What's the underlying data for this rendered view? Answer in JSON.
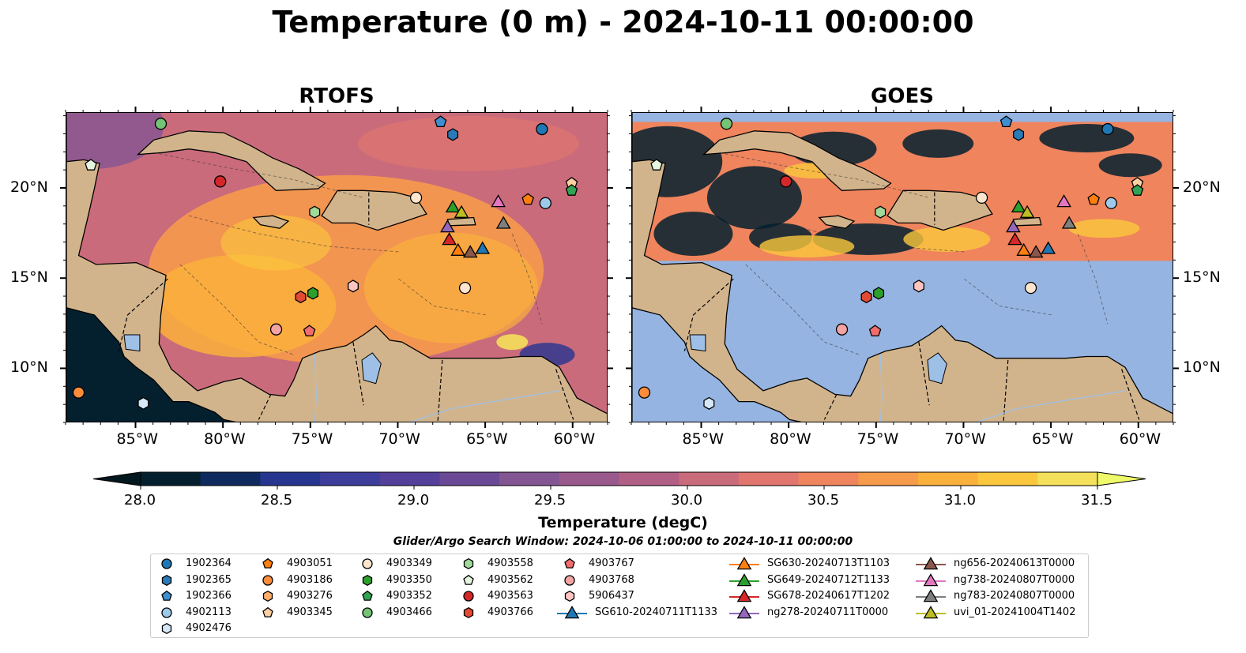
{
  "title": "Temperature (0 m) - 2024-10-11 00:00:00",
  "panels": [
    {
      "title": "RTOFS"
    },
    {
      "title": "GOES"
    }
  ],
  "lon_ticks": [
    "85°W",
    "80°W",
    "75°W",
    "70°W",
    "65°W",
    "60°W"
  ],
  "lat_ticks": [
    "20°N",
    "15°N",
    "10°N"
  ],
  "colorbar": {
    "label": "Temperature (degC)",
    "min": 28.0,
    "max": 31.5,
    "ticks": [
      "28.0",
      "28.5",
      "29.0",
      "29.5",
      "30.0",
      "30.5",
      "31.0",
      "31.5"
    ],
    "colors": [
      "#04202f",
      "#0e2a5e",
      "#263590",
      "#3d3d9c",
      "#543f9a",
      "#6b4996",
      "#835593",
      "#99598c",
      "#b15f85",
      "#ca6b7b",
      "#e1766e",
      "#ef845d",
      "#f69a4b",
      "#fbb03c",
      "#fbc83d",
      "#f4e05a"
    ],
    "under_color": "#03171f",
    "over_color": "#eefa6a"
  },
  "search_window": "Glider/Argo Search Window: 2024-10-06 01:00:00 to 2024-10-11 00:00:00",
  "land_color": "#d2b48c",
  "goes_nodata_color": "#95b4e1",
  "legend": {
    "columns": [
      [
        {
          "label": "1902364",
          "marker": "circle",
          "color": "#1f77b4"
        },
        {
          "label": "1902365",
          "marker": "hexagon",
          "color": "#2a7ab8"
        },
        {
          "label": "1902366",
          "marker": "pentagon",
          "color": "#3f8fd0"
        },
        {
          "label": "4902113",
          "marker": "circle",
          "color": "#9ecae9"
        },
        {
          "label": "4902476",
          "marker": "hexagon",
          "color": "#d6e8f7"
        }
      ],
      [
        {
          "label": "4903051",
          "marker": "pentagon",
          "color": "#ff7f0e"
        },
        {
          "label": "4903186",
          "marker": "circle",
          "color": "#fd8d3c"
        },
        {
          "label": "4903276",
          "marker": "hexagon",
          "color": "#fdae6b"
        },
        {
          "label": "4903345",
          "marker": "pentagon",
          "color": "#fdd0a2"
        }
      ],
      [
        {
          "label": "4903349",
          "marker": "circle",
          "color": "#fee6ce"
        },
        {
          "label": "4903350",
          "marker": "hexagon",
          "color": "#2ca02c"
        },
        {
          "label": "4903352",
          "marker": "pentagon",
          "color": "#31a354"
        },
        {
          "label": "4903466",
          "marker": "circle",
          "color": "#74c476"
        }
      ],
      [
        {
          "label": "4903558",
          "marker": "hexagon",
          "color": "#a1d99b"
        },
        {
          "label": "4903562",
          "marker": "pentagon",
          "color": "#e5f5e0"
        },
        {
          "label": "4903563",
          "marker": "circle",
          "color": "#d62728"
        },
        {
          "label": "4903766",
          "marker": "hexagon",
          "color": "#e34a33"
        }
      ],
      [
        {
          "label": "4903767",
          "marker": "pentagon",
          "color": "#f16d6d"
        },
        {
          "label": "4903768",
          "marker": "circle",
          "color": "#f4a3a3"
        },
        {
          "label": "5906437",
          "marker": "hexagon",
          "color": "#fcc5c0"
        },
        {
          "label": "SG610-20240711T1133",
          "marker": "triangle",
          "color": "#1f77b4",
          "line": true
        }
      ],
      [
        {
          "label": "SG630-20240713T1103",
          "marker": "triangle",
          "color": "#ff7f0e",
          "line": true
        },
        {
          "label": "SG649-20240712T1133",
          "marker": "triangle",
          "color": "#2ca02c",
          "line": true
        },
        {
          "label": "SG678-20240617T1202",
          "marker": "triangle",
          "color": "#d62728",
          "line": true
        },
        {
          "label": "ng278-20240711T0000",
          "marker": "triangle",
          "color": "#9467bd",
          "line": true
        }
      ],
      [
        {
          "label": "ng656-20240613T0000",
          "marker": "triangle",
          "color": "#8c564b",
          "line": true
        },
        {
          "label": "ng738-20240807T0000",
          "marker": "triangle",
          "color": "#e377c2",
          "line": true
        },
        {
          "label": "ng783-20240807T0000",
          "marker": "triangle",
          "color": "#7f7f7f",
          "line": true
        },
        {
          "label": "uvi_01-20241004T1402",
          "marker": "triangle",
          "color": "#bcbd22",
          "line": true
        }
      ]
    ]
  },
  "markers": [
    {
      "label": "4903466",
      "marker": "circle",
      "color": "#74c476",
      "lon": -83.6,
      "lat": 23.6
    },
    {
      "label": "1902366",
      "marker": "pentagon",
      "color": "#3f8fd0",
      "lon": -67.6,
      "lat": 23.7
    },
    {
      "label": "1902365",
      "marker": "hexagon",
      "color": "#2a7ab8",
      "lon": -66.9,
      "lat": 23.0
    },
    {
      "label": "1902364",
      "marker": "circle",
      "color": "#1f77b4",
      "lon": -61.8,
      "lat": 23.3
    },
    {
      "label": "4903562",
      "marker": "pentagon",
      "color": "#e5f5e0",
      "lon": -87.6,
      "lat": 21.3
    },
    {
      "label": "4903563",
      "marker": "circle",
      "color": "#d62728",
      "lon": -80.2,
      "lat": 20.4
    },
    {
      "label": "4903345",
      "marker": "pentagon",
      "color": "#fdd0a2",
      "lon": -60.1,
      "lat": 20.3
    },
    {
      "label": "4903352",
      "marker": "pentagon",
      "color": "#31a354",
      "lon": -60.1,
      "lat": 19.9
    },
    {
      "label": "4903349",
      "marker": "circle",
      "color": "#fee6ce",
      "lon": -69.0,
      "lat": 19.5
    },
    {
      "label": "4903051",
      "marker": "pentagon",
      "color": "#ff7f0e",
      "lon": -62.6,
      "lat": 19.4
    },
    {
      "label": "4902113",
      "marker": "circle",
      "color": "#9ecae9",
      "lon": -61.6,
      "lat": 19.2
    },
    {
      "label": "4903558",
      "marker": "hexagon",
      "color": "#a1d99b",
      "lon": -74.8,
      "lat": 18.7
    },
    {
      "label": "4903349",
      "marker": "circle",
      "color": "#fee6ce",
      "lon": -66.2,
      "lat": 14.5
    },
    {
      "label": "5906437",
      "marker": "hexagon",
      "color": "#fcc5c0",
      "lon": -72.6,
      "lat": 14.6
    },
    {
      "label": "4903766",
      "marker": "hexagon",
      "color": "#e34a33",
      "lon": -75.6,
      "lat": 14.0
    },
    {
      "label": "4903350",
      "marker": "hexagon",
      "color": "#2ca02c",
      "lon": -74.9,
      "lat": 14.2
    },
    {
      "label": "4903768",
      "marker": "circle",
      "color": "#f4a3a3",
      "lon": -77.0,
      "lat": 12.2
    },
    {
      "label": "4903767",
      "marker": "pentagon",
      "color": "#f16d6d",
      "lon": -75.1,
      "lat": 12.1
    },
    {
      "label": "4903186",
      "marker": "circle",
      "color": "#fd8d3c",
      "lon": -88.3,
      "lat": 8.7
    },
    {
      "label": "4902476",
      "marker": "hexagon",
      "color": "#d6e8f7",
      "lon": -84.6,
      "lat": 8.1
    },
    {
      "label": "SG649-20240712T1133",
      "marker": "triangle",
      "color": "#2ca02c",
      "lon": -66.9,
      "lat": 19.0
    },
    {
      "label": "uvi_01-20241004T1402",
      "marker": "triangle",
      "color": "#bcbd22",
      "lon": -66.4,
      "lat": 18.7
    },
    {
      "label": "ng738-20240807T0000",
      "marker": "triangle",
      "color": "#e377c2",
      "lon": -64.3,
      "lat": 19.3
    },
    {
      "label": "ng278-20240711T0000",
      "marker": "triangle",
      "color": "#9467bd",
      "lon": -67.2,
      "lat": 17.9
    },
    {
      "label": "ng783-20240807T0000",
      "marker": "triangle",
      "color": "#7f7f7f",
      "lon": -64.0,
      "lat": 18.1
    },
    {
      "label": "SG678-20240617T1202",
      "marker": "triangle",
      "color": "#d62728",
      "lon": -67.1,
      "lat": 17.2
    },
    {
      "label": "SG630-20240713T1103",
      "marker": "triangle",
      "color": "#ff7f0e",
      "lon": -66.6,
      "lat": 16.6
    },
    {
      "label": "ng656-20240613T0000",
      "marker": "triangle",
      "color": "#8c564b",
      "lon": -65.9,
      "lat": 16.5
    },
    {
      "label": "SG610-20240711T1133",
      "marker": "triangle",
      "color": "#1f77b4",
      "lon": -65.2,
      "lat": 16.7
    }
  ]
}
